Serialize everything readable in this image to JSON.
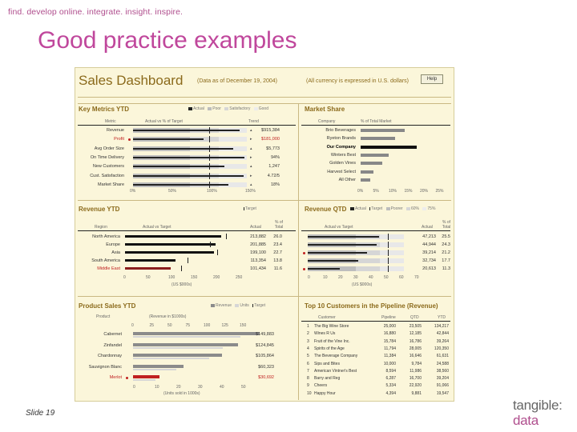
{
  "tagline": "find. develop online. integrate. insight. inspire.",
  "slide_title": "Good practice examples",
  "slide_number": "Slide 19",
  "logo": {
    "top": "tangible:",
    "bottom": "data"
  },
  "dashboard": {
    "title": "Sales Dashboard",
    "as_of": "(Data as of December 19, 2004)",
    "currency_note": "(All currency is expressed in U.S. dollars)",
    "help_label": "Help",
    "key_metrics": {
      "title": "Key Metrics YTD",
      "legend": [
        "Actual",
        "Poor",
        "Satisfactory",
        "Good"
      ],
      "headers": {
        "metric": "Metric",
        "actual": "Actual vs % of Target",
        "trend": "Trend"
      },
      "rows": [
        {
          "name": "Revenue",
          "value": "$915,384",
          "alert": false
        },
        {
          "name": "Profit",
          "value": "$181,000",
          "alert": true
        },
        {
          "name": "Avg Order Size",
          "value": "$5,773",
          "alert": false
        },
        {
          "name": "On Time Delivery",
          "value": "94%",
          "alert": false
        },
        {
          "name": "New Customers",
          "value": "1,247",
          "alert": false
        },
        {
          "name": "Cust. Satisfaction",
          "value": "4.72/5",
          "alert": false
        },
        {
          "name": "Market Share",
          "value": "18%",
          "alert": false
        }
      ],
      "ticks": [
        "0%",
        "50%",
        "100%",
        "150%"
      ]
    },
    "market_share": {
      "title": "Market Share",
      "headers": {
        "company": "Company",
        "share": "% of Total Market"
      },
      "rows": [
        {
          "name": "Brio Beverages",
          "value": 14,
          "own": false
        },
        {
          "name": "Ryeton Brands",
          "value": 11,
          "own": false
        },
        {
          "name": "Our Company",
          "value": 18,
          "own": true
        },
        {
          "name": "Winters Best",
          "value": 9,
          "own": false
        },
        {
          "name": "Golden Vines",
          "value": 7,
          "own": false
        },
        {
          "name": "Harvest Select",
          "value": 4,
          "own": false
        },
        {
          "name": "All Other",
          "value": 3,
          "own": false
        }
      ],
      "ticks": [
        "0%",
        "5%",
        "10%",
        "15%",
        "20%",
        "25%"
      ]
    },
    "revenue_ytd": {
      "title": "Revenue YTD",
      "legend": [
        "Target"
      ],
      "headers": {
        "region": "Region",
        "actual": "Actual vs Target",
        "actual_col": "Actual",
        "pct": "% of Total"
      },
      "rows": [
        {
          "name": "North America",
          "value": "213,882",
          "pct": "26.0",
          "amount": 214,
          "target": 225,
          "alert": false
        },
        {
          "name": "Europe",
          "value": "201,885",
          "pct": "23.4",
          "amount": 202,
          "target": 190,
          "alert": false
        },
        {
          "name": "Asia",
          "value": "199,100",
          "pct": "22.7",
          "amount": 199,
          "target": 205,
          "alert": false
        },
        {
          "name": "South America",
          "value": "113,354",
          "pct": "13.8",
          "amount": 113,
          "target": 140,
          "alert": false
        },
        {
          "name": "Middle East",
          "value": "101,434",
          "pct": "11.6",
          "amount": 101,
          "target": 125,
          "alert": true
        }
      ],
      "ticks": [
        "0",
        "50",
        "100",
        "150",
        "200",
        "250"
      ],
      "unit": "(US $000s)"
    },
    "revenue_qtd": {
      "title": "Revenue QTD",
      "legend": [
        "Actual",
        "Target",
        "Poorer",
        "60%",
        "75%"
      ],
      "headers": {
        "actual": "Actual vs Target",
        "actual_col": "Actual",
        "pct": "% of Total"
      },
      "rows": [
        {
          "value": "47,213",
          "pct": "25.5",
          "amount": 47,
          "alert": false
        },
        {
          "value": "44,944",
          "pct": "24.3",
          "amount": 45,
          "alert": false
        },
        {
          "value": "39,214",
          "pct": "21.2",
          "amount": 39,
          "alert": true
        },
        {
          "value": "32,734",
          "pct": "17.7",
          "amount": 33,
          "alert": false
        },
        {
          "value": "20,613",
          "pct": "11.3",
          "amount": 21,
          "alert": true
        }
      ],
      "ticks": [
        "0",
        "10",
        "20",
        "30",
        "40",
        "50",
        "60",
        "70"
      ],
      "unit": "(US $000s)"
    },
    "product_sales": {
      "title": "Product Sales YTD",
      "legend": [
        "Revenue",
        "Units",
        "Target"
      ],
      "headers": {
        "product": "Product",
        "revenue": "(Revenue in $1000s)"
      },
      "top_ticks": [
        "0",
        "25",
        "50",
        "75",
        "100",
        "125",
        "150"
      ],
      "rows": [
        {
          "name": "Cabernet",
          "value": "$149,883",
          "amount": 150,
          "alert": false
        },
        {
          "name": "Zinfandel",
          "value": "$124,845",
          "amount": 125,
          "alert": false
        },
        {
          "name": "Chardonnay",
          "value": "$105,864",
          "amount": 106,
          "alert": false
        },
        {
          "name": "Sauvignon Blanc",
          "value": "$60,323",
          "amount": 60,
          "alert": false
        },
        {
          "name": "Merlot",
          "value": "$30,692",
          "amount": 31,
          "alert": true
        }
      ],
      "bottom_ticks": [
        "0",
        "10",
        "20",
        "30",
        "40",
        "50"
      ],
      "unit": "(Units sold in 1000s)"
    },
    "top_customers": {
      "title": "Top 10 Customers in the Pipeline (Revenue)",
      "headers": [
        "Customer",
        "Pipeline",
        "QTD",
        "YTD"
      ],
      "rows": [
        [
          "1",
          "The Big Wine Store",
          "25,000",
          "23,505",
          "134,217"
        ],
        [
          "2",
          "Wines R Us",
          "16,880",
          "12,185",
          "42,844"
        ],
        [
          "3",
          "Fruit of the Vine Inc.",
          "15,784",
          "16,786",
          "39,264"
        ],
        [
          "4",
          "Spirits of the Age",
          "11,794",
          "28,005",
          "120,350"
        ],
        [
          "5",
          "The Beverage Company",
          "11,384",
          "16,646",
          "61,631"
        ],
        [
          "6",
          "Sips and Bites",
          "10,000",
          "9,784",
          "24,588"
        ],
        [
          "7",
          "American Vintner's Best",
          "8,594",
          "11,986",
          "38,560"
        ],
        [
          "8",
          "Barry and Reg",
          "6,287",
          "16,700",
          "39,204"
        ],
        [
          "9",
          "Cheers",
          "5,334",
          "22,920",
          "91,066"
        ],
        [
          "10",
          "Happy Hour",
          "4,394",
          "9,881",
          "19,547"
        ]
      ]
    }
  }
}
